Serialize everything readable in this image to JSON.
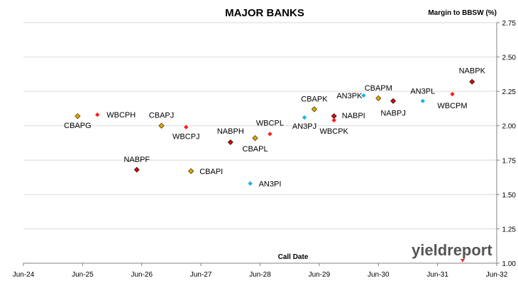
{
  "chart_data": {
    "type": "scatter",
    "title": "MAJOR BANKS",
    "ylabel": "Margin to BBSW (%)",
    "xlabel": "Call Date",
    "ylim": [
      1.0,
      2.75
    ],
    "yticks": [
      "1.00",
      "1.25",
      "1.50",
      "1.75",
      "2.00",
      "2.25",
      "2.50",
      "2.75"
    ],
    "xlim": [
      "2024-06",
      "2032-06"
    ],
    "xticks": [
      "Jun-24",
      "Jun-25",
      "Jun-26",
      "Jun-27",
      "Jun-28",
      "Jun-29",
      "Jun-30",
      "Jun-31",
      "Jun-32"
    ],
    "grid": "horizontal",
    "brand": "yieldreport",
    "colors": {
      "CBA": "#e0a800",
      "WBC": "#ff1a1a",
      "NAB": "#cc1111",
      "AN3": "#19b2e6"
    },
    "points": [
      {
        "name": "CBAPG",
        "issuer": "CBA",
        "x": "2025-05",
        "y": 2.07
      },
      {
        "name": "WBCPH",
        "issuer": "WBC",
        "x": "2025-09",
        "y": 2.08
      },
      {
        "name": "NABPF",
        "issuer": "NAB",
        "x": "2026-05",
        "y": 1.68
      },
      {
        "name": "CBAPJ",
        "issuer": "CBA",
        "x": "2026-10",
        "y": 2.0
      },
      {
        "name": "WBCPJ",
        "issuer": "WBC",
        "x": "2027-03",
        "y": 1.99
      },
      {
        "name": "CBAPI",
        "issuer": "CBA",
        "x": "2027-04",
        "y": 1.67
      },
      {
        "name": "NABPH",
        "issuer": "NAB",
        "x": "2027-12",
        "y": 1.88
      },
      {
        "name": "AN3PI",
        "issuer": "AN3",
        "x": "2028-04",
        "y": 1.58
      },
      {
        "name": "CBAPL",
        "issuer": "CBA",
        "x": "2028-05",
        "y": 1.91
      },
      {
        "name": "WBCPL",
        "issuer": "WBC",
        "x": "2028-08",
        "y": 1.94
      },
      {
        "name": "AN3PJ",
        "issuer": "AN3",
        "x": "2029-03",
        "y": 2.06
      },
      {
        "name": "CBAPK",
        "issuer": "CBA",
        "x": "2029-05",
        "y": 2.12
      },
      {
        "name": "NABPI",
        "issuer": "NAB",
        "x": "2029-09",
        "y": 2.07
      },
      {
        "name": "WBCPK",
        "issuer": "WBC",
        "x": "2029-09",
        "y": 2.04
      },
      {
        "name": "AN3PK",
        "issuer": "AN3",
        "x": "2030-03",
        "y": 2.22
      },
      {
        "name": "CBAPM",
        "issuer": "CBA",
        "x": "2030-06",
        "y": 2.2
      },
      {
        "name": "NABPJ",
        "issuer": "NAB",
        "x": "2030-09",
        "y": 2.18
      },
      {
        "name": "AN3PL",
        "issuer": "AN3",
        "x": "2031-03",
        "y": 2.18
      },
      {
        "name": "WBCPM",
        "issuer": "WBC",
        "x": "2031-09",
        "y": 2.23
      },
      {
        "name": "NABPK",
        "issuer": "NAB",
        "x": "2032-01",
        "y": 2.32
      }
    ]
  }
}
